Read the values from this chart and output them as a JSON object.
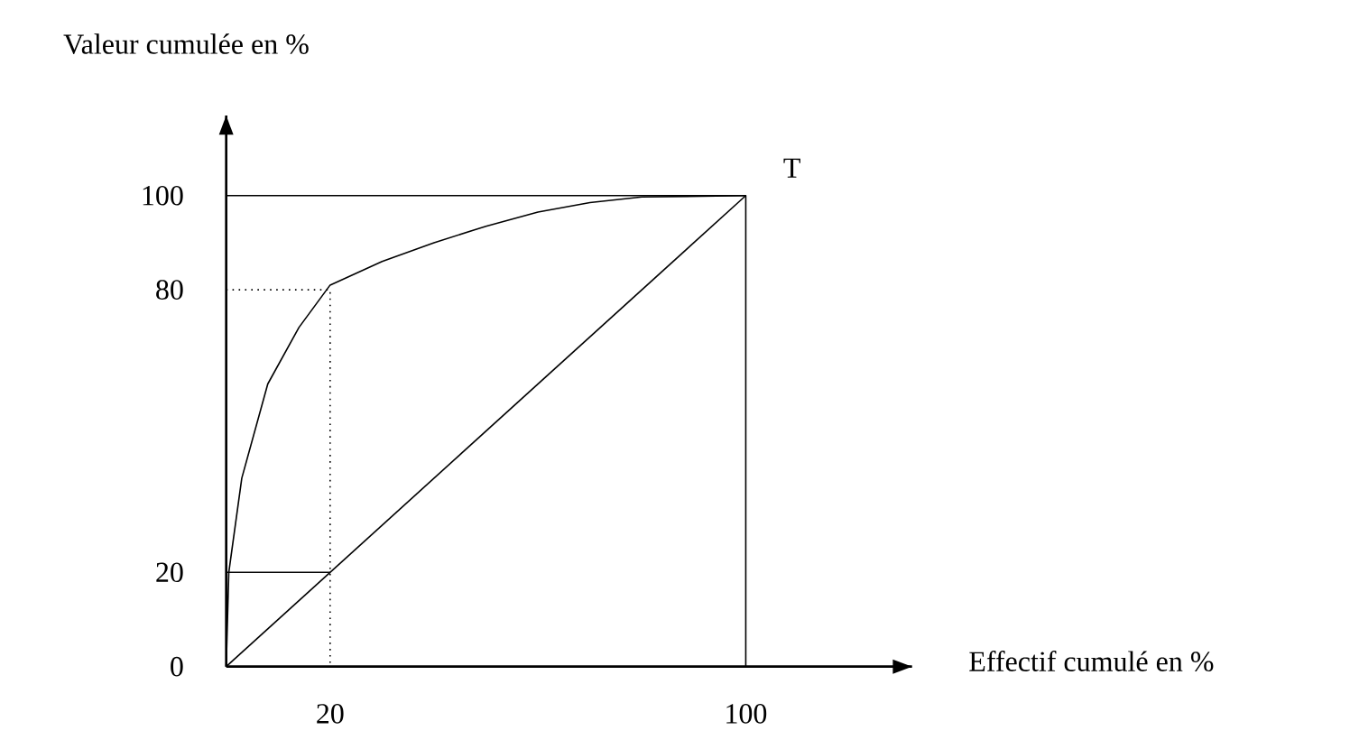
{
  "chart_data": {
    "type": "line",
    "xlabel": "Effectif cumulé en %",
    "ylabel": "Valeur cumulée en %",
    "xlim": [
      0,
      132
    ],
    "ylim": [
      0,
      117
    ],
    "xticks": [
      20,
      100
    ],
    "yticks": [
      0,
      20,
      80,
      100
    ],
    "grid": false,
    "marker": "none",
    "annotations": [
      {
        "text": "T",
        "x": 100,
        "y": 100
      }
    ],
    "series": [
      {
        "color": "#000000",
        "line_style": "solid",
        "x": [
          0,
          0.5,
          3,
          8,
          14,
          20,
          30,
          40,
          50,
          60,
          70,
          80,
          100
        ],
        "values": [
          0,
          20,
          40,
          60,
          72,
          81,
          86,
          90,
          93.5,
          96.5,
          98.5,
          99.7,
          100
        ]
      },
      {
        "color": "#000000",
        "line_style": "solid",
        "x": [
          0,
          100
        ],
        "values": [
          0,
          100
        ]
      },
      {
        "color": "#000000",
        "line_style": "dotted",
        "x": [
          0,
          20,
          20
        ],
        "values": [
          80,
          80,
          0
        ]
      },
      {
        "color": "#000000",
        "line_style": "solid",
        "x": [
          0,
          20
        ],
        "values": [
          20,
          20
        ]
      },
      {
        "color": "#000000",
        "line_style": "solid",
        "x": [
          0,
          100,
          100
        ],
        "values": [
          100,
          100,
          0
        ]
      }
    ]
  }
}
